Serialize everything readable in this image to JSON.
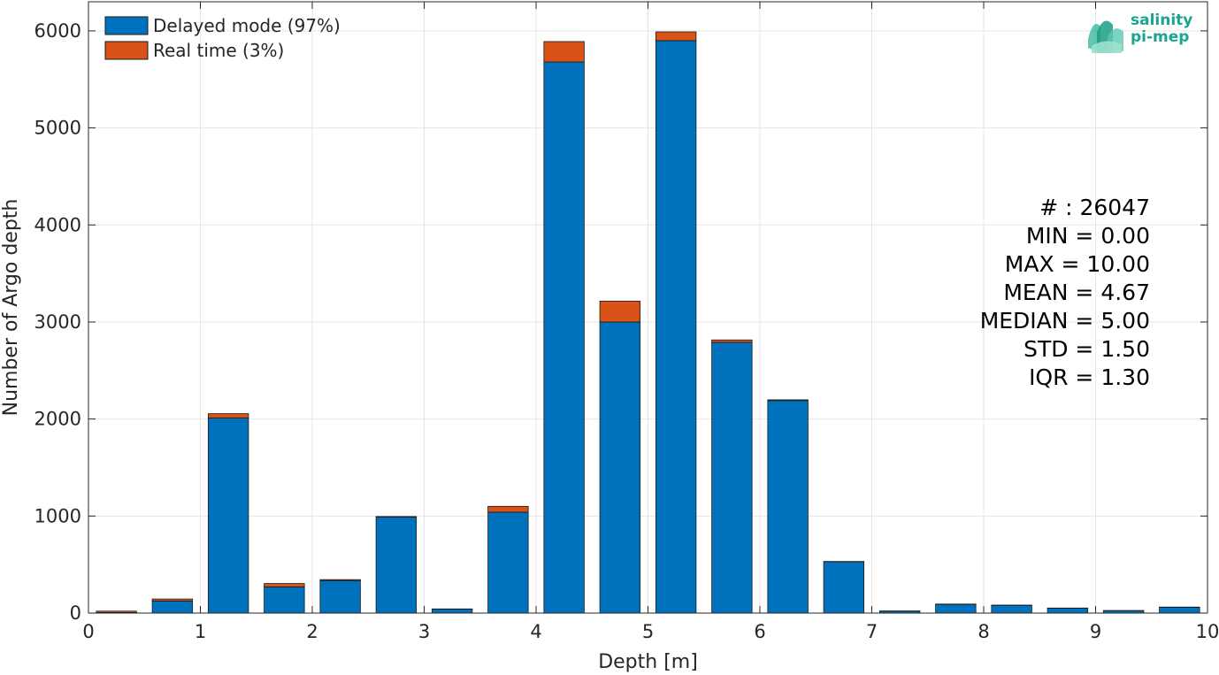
{
  "chart_data": {
    "type": "bar",
    "stacked": true,
    "xlabel": "Depth [m]",
    "ylabel": "Number of Argo depth",
    "xlim": [
      0,
      10
    ],
    "ylim": [
      0,
      6300
    ],
    "xticks": [
      "0",
      "1",
      "2",
      "3",
      "4",
      "5",
      "6",
      "7",
      "8",
      "9",
      "10"
    ],
    "yticks": [
      "0",
      "1000",
      "2000",
      "3000",
      "4000",
      "5000",
      "6000"
    ],
    "grid": true,
    "legend_position": "top-left",
    "bin_centers": [
      0.25,
      0.75,
      1.25,
      1.75,
      2.25,
      2.75,
      3.25,
      3.75,
      4.25,
      4.75,
      5.25,
      5.75,
      6.25,
      6.75,
      7.25,
      7.75,
      8.25,
      8.75,
      9.25,
      9.75
    ],
    "series": [
      {
        "name": "Delayed mode (97%)",
        "color": "#0072bd",
        "values": [
          5,
          125,
          2010,
          270,
          335,
          990,
          40,
          1040,
          5680,
          3000,
          5900,
          2790,
          2190,
          530,
          20,
          90,
          80,
          50,
          25,
          60
        ]
      },
      {
        "name": "Real time (3%)",
        "color": "#d95319",
        "values": [
          15,
          20,
          45,
          35,
          10,
          5,
          3,
          60,
          210,
          215,
          90,
          25,
          8,
          2,
          2,
          3,
          2,
          2,
          1,
          2
        ]
      }
    ],
    "stats": [
      "# : 26047",
      "MIN = 0.00",
      "MAX =  10.00",
      "MEAN = 4.67",
      "MEDIAN = 5.00",
      "STD = 1.50",
      "IQR = 1.30"
    ]
  },
  "logo": {
    "line1": "salinity",
    "line2": "pi-mep"
  }
}
